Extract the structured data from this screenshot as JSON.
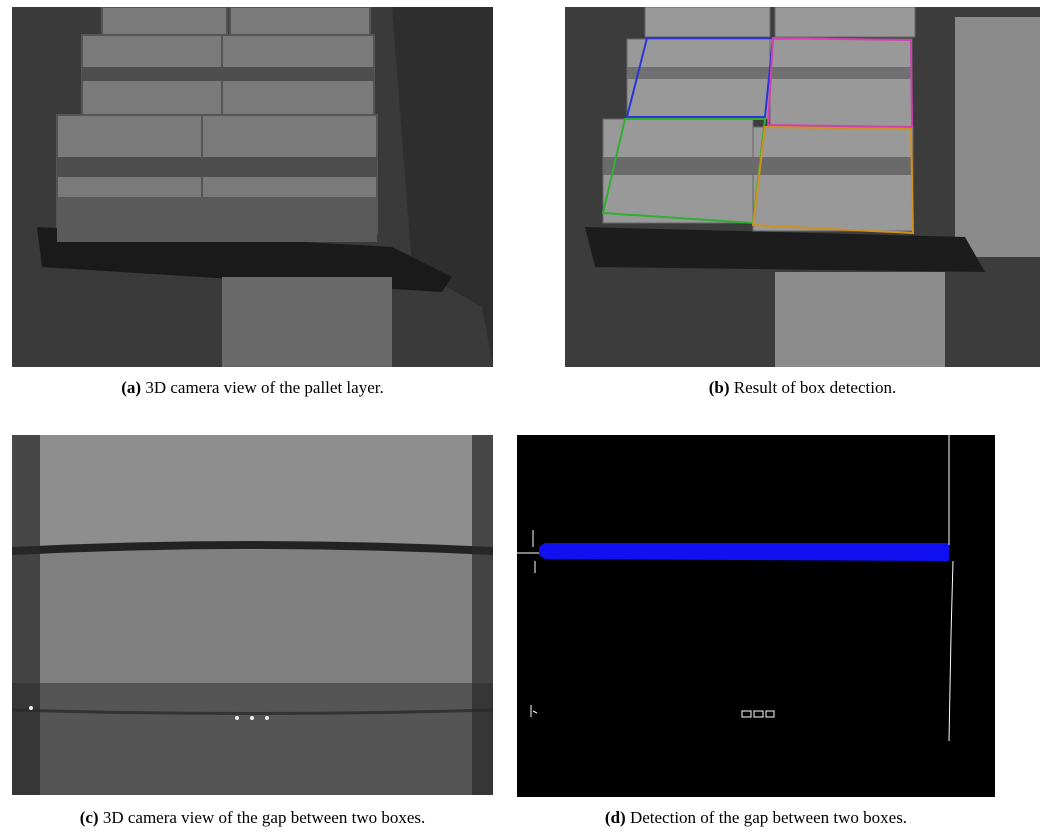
{
  "figure": {
    "panels": [
      {
        "label": "(a)",
        "caption": "3D camera view of the pallet layer."
      },
      {
        "label": "(b)",
        "caption": "Result of box detection."
      },
      {
        "label": "(c)",
        "caption": "3D camera view of the gap between two boxes."
      },
      {
        "label": "(d)",
        "caption": "Detection of the gap between two boxes."
      }
    ]
  }
}
